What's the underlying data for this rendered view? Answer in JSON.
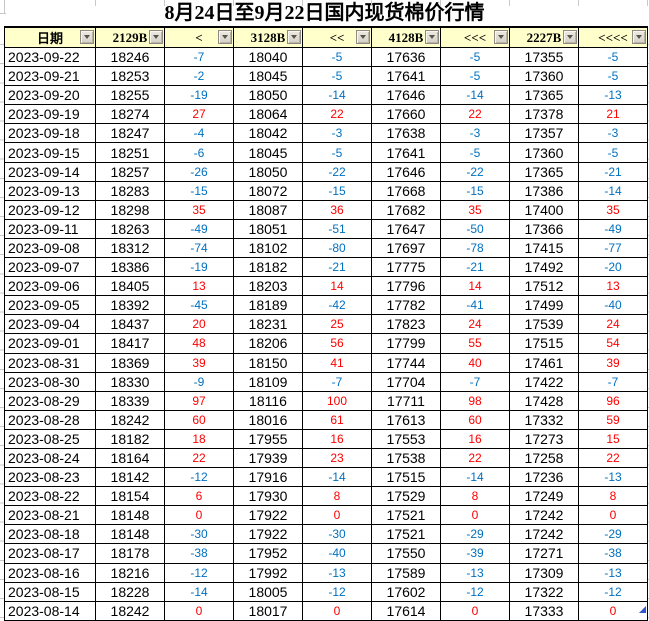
{
  "title": "8月24日至9月22日国内现货棉价行情",
  "table": {
    "columns": [
      "日期",
      "2129B",
      "<",
      "3128B",
      "<<",
      "4128B",
      "<<<",
      "2227B",
      "<<<<"
    ],
    "rows": [
      [
        "2023-09-22",
        18246,
        -7,
        18040,
        -5,
        17636,
        -5,
        17355,
        -5
      ],
      [
        "2023-09-21",
        18253,
        -2,
        18045,
        -5,
        17641,
        -5,
        17360,
        -5
      ],
      [
        "2023-09-20",
        18255,
        -19,
        18050,
        -14,
        17646,
        -14,
        17365,
        -13
      ],
      [
        "2023-09-19",
        18274,
        27,
        18064,
        22,
        17660,
        22,
        17378,
        21
      ],
      [
        "2023-09-18",
        18247,
        -4,
        18042,
        -3,
        17638,
        -3,
        17357,
        -3
      ],
      [
        "2023-09-15",
        18251,
        -6,
        18045,
        -5,
        17641,
        -5,
        17360,
        -5
      ],
      [
        "2023-09-14",
        18257,
        -26,
        18050,
        -22,
        17646,
        -22,
        17365,
        -21
      ],
      [
        "2023-09-13",
        18283,
        -15,
        18072,
        -15,
        17668,
        -15,
        17386,
        -14
      ],
      [
        "2023-09-12",
        18298,
        35,
        18087,
        36,
        17682,
        35,
        17400,
        35
      ],
      [
        "2023-09-11",
        18263,
        -49,
        18051,
        -51,
        17647,
        -50,
        17366,
        -49
      ],
      [
        "2023-09-08",
        18312,
        -74,
        18102,
        -80,
        17697,
        -78,
        17415,
        -77
      ],
      [
        "2023-09-07",
        18386,
        -19,
        18182,
        -21,
        17775,
        -21,
        17492,
        -20
      ],
      [
        "2023-09-06",
        18405,
        13,
        18203,
        14,
        17796,
        14,
        17512,
        13
      ],
      [
        "2023-09-05",
        18392,
        -45,
        18189,
        -42,
        17782,
        -41,
        17499,
        -40
      ],
      [
        "2023-09-04",
        18437,
        20,
        18231,
        25,
        17823,
        24,
        17539,
        24
      ],
      [
        "2023-09-01",
        18417,
        48,
        18206,
        56,
        17799,
        55,
        17515,
        54
      ],
      [
        "2023-08-31",
        18369,
        39,
        18150,
        41,
        17744,
        40,
        17461,
        39
      ],
      [
        "2023-08-30",
        18330,
        -9,
        18109,
        -7,
        17704,
        -7,
        17422,
        -7
      ],
      [
        "2023-08-29",
        18339,
        97,
        18116,
        100,
        17711,
        98,
        17428,
        96
      ],
      [
        "2023-08-28",
        18242,
        60,
        18016,
        61,
        17613,
        60,
        17332,
        59
      ],
      [
        "2023-08-25",
        18182,
        18,
        17955,
        16,
        17553,
        16,
        17273,
        15
      ],
      [
        "2023-08-24",
        18164,
        22,
        17939,
        23,
        17538,
        22,
        17258,
        22
      ],
      [
        "2023-08-23",
        18142,
        -12,
        17916,
        -14,
        17515,
        -14,
        17236,
        -13
      ],
      [
        "2023-08-22",
        18154,
        6,
        17930,
        8,
        17529,
        8,
        17249,
        8
      ],
      [
        "2023-08-21",
        18148,
        0,
        17922,
        0,
        17521,
        0,
        17242,
        0
      ],
      [
        "2023-08-18",
        18148,
        -30,
        17922,
        -30,
        17521,
        -29,
        17242,
        -29
      ],
      [
        "2023-08-17",
        18178,
        -38,
        17952,
        -40,
        17550,
        -39,
        17271,
        -38
      ],
      [
        "2023-08-16",
        18216,
        -12,
        17992,
        -13,
        17589,
        -13,
        17309,
        -13
      ],
      [
        "2023-08-15",
        18228,
        -14,
        18005,
        -12,
        17602,
        -12,
        17322,
        -12
      ],
      [
        "2023-08-14",
        18242,
        0,
        18017,
        0,
        17614,
        0,
        17333,
        0
      ]
    ]
  },
  "colors": {
    "header_bg": "#FFFFCC",
    "positive_change": "#FF0000",
    "negative_change": "#0070C0",
    "cell_border": "#000000",
    "faint_gridline": "#C9C9C9",
    "corner_marker": "#3355CC"
  },
  "icons": {
    "filter_dropdown": "triangle-down"
  }
}
